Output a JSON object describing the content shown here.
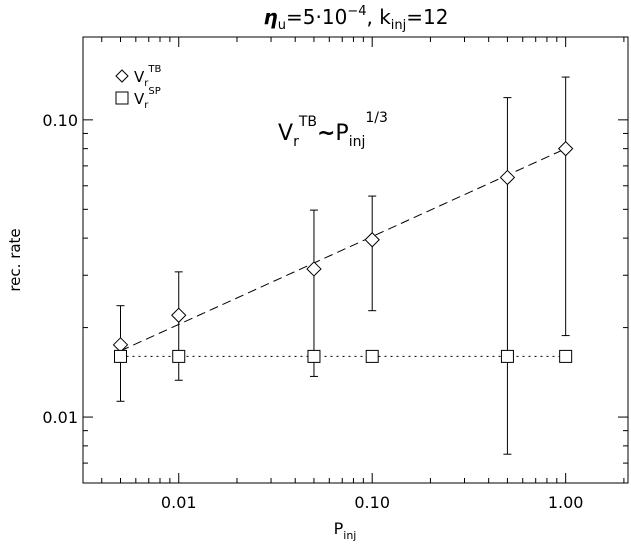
{
  "chart_data": {
    "type": "scatter",
    "title": {
      "symbol": "η",
      "sub1": "u",
      "eq1": "=5·10",
      "exp": "−4",
      "sep": ",  k",
      "sub2": "inj",
      "eq2": "=12"
    },
    "xlabel": {
      "base": "P",
      "sub": "inj"
    },
    "ylabel": "rec. rate",
    "xscale": "log",
    "yscale": "log",
    "xlim": [
      0.0032,
      2.1
    ],
    "ylim": [
      0.006,
      0.19
    ],
    "x_ticks": [
      {
        "value": 0.01,
        "label": "0.01"
      },
      {
        "value": 0.1,
        "label": "0.10"
      },
      {
        "value": 1.0,
        "label": "1.00"
      }
    ],
    "y_ticks": [
      {
        "value": 0.01,
        "label": "0.01"
      },
      {
        "value": 0.1,
        "label": "0.10"
      }
    ],
    "grid": false,
    "legend_position": "top-left",
    "series": [
      {
        "name": {
          "base": "V",
          "sub": "r",
          "sup": "TB"
        },
        "marker": "diamond",
        "x": [
          0.005,
          0.01,
          0.05,
          0.1,
          0.5,
          1.0
        ],
        "y": [
          0.0175,
          0.022,
          0.0315,
          0.0395,
          0.064,
          0.08
        ],
        "err_low": [
          0.0113,
          0.0133,
          0.0137,
          0.0228,
          0.0075,
          0.0188
        ],
        "err_high": [
          0.0237,
          0.0308,
          0.0497,
          0.0554,
          0.1188,
          0.1393
        ]
      },
      {
        "name": {
          "base": "V",
          "sub": "r",
          "sup": "SP"
        },
        "marker": "square",
        "x": [
          0.005,
          0.01,
          0.05,
          0.1,
          0.5,
          1.0
        ],
        "y": [
          0.016,
          0.016,
          0.016,
          0.016,
          0.016,
          0.016
        ]
      }
    ],
    "fits": [
      {
        "style": "dashed",
        "x": [
          0.005,
          1.0
        ],
        "y": [
          0.0167,
          0.08
        ]
      },
      {
        "style": "dotted",
        "x": [
          0.005,
          1.0
        ],
        "y": [
          0.016,
          0.016
        ]
      }
    ],
    "annotation": {
      "v": "V",
      "vsub": "r",
      "vsup": "TB",
      "tilde": "~",
      "p": "P",
      "psub": "inj",
      "psup": "1/3"
    }
  }
}
